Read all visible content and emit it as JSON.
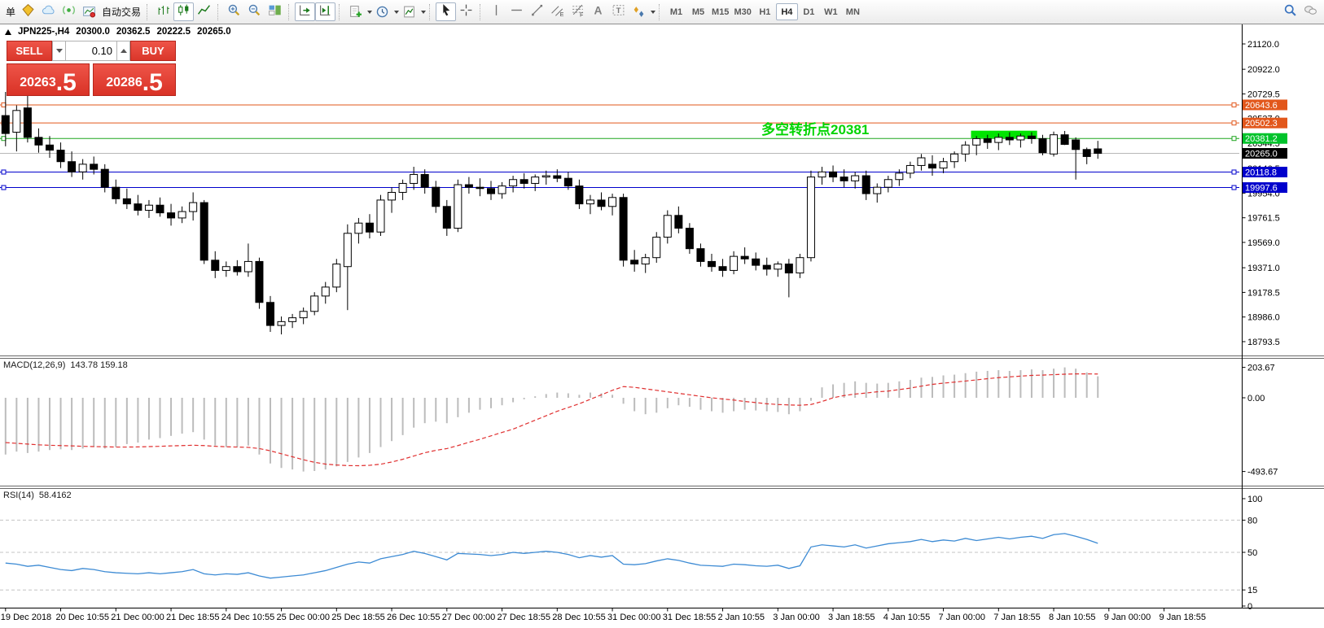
{
  "toolbar": {
    "new_order_label": "单",
    "autotrading_label": "自动交易",
    "icons": [
      "order-ticket",
      "market-watch-cloud",
      "signals",
      "autotrading",
      "bar-chart",
      "candlestick-chart",
      "line-chart",
      "zoom-in",
      "zoom-out",
      "tile-windows",
      "auto-scroll",
      "chart-shift",
      "indicators",
      "periods",
      "templates",
      "cursor",
      "crosshair",
      "vertical-line",
      "horizontal-line",
      "trendline",
      "equidistant-channel",
      "fibonacci",
      "text",
      "text-label",
      "arrows",
      "search",
      "chat"
    ],
    "timeframes": [
      "M1",
      "M5",
      "M15",
      "M30",
      "H1",
      "H4",
      "D1",
      "W1",
      "MN"
    ],
    "active_timeframe": "H4"
  },
  "chart": {
    "title": {
      "symbol_period": "JPN225-,H4",
      "open": "20300.0",
      "high": "20362.5",
      "low": "20222.5",
      "close": "20265.0"
    },
    "trade_panel": {
      "sell_label": "SELL",
      "buy_label": "BUY",
      "volume": "0.10",
      "sell_price_main": "20263",
      "sell_price_big": ".5",
      "buy_price_main": "20286",
      "buy_price_big": ".5",
      "panel_color": "#da362a"
    },
    "annotation": {
      "text": "多空转折点20381",
      "color": "#00d400",
      "x": 935,
      "anchor_price": 20381.2
    },
    "y_ticks": [
      21120.0,
      20922.0,
      20729.5,
      20537.0,
      20344.5,
      20146.5,
      19954.0,
      19761.5,
      19569.0,
      19371.0,
      19178.5,
      18986.0,
      18793.5
    ],
    "hlines": [
      {
        "price": 20643.6,
        "label": "20643.6",
        "color": "#e2571b",
        "label_bg": "#e2571b",
        "text_color": "#ffffff",
        "handles": true
      },
      {
        "price": 20502.3,
        "label": "20502.3",
        "color": "#e2571b",
        "label_bg": "#e2571b",
        "text_color": "#ffffff",
        "handles": true
      },
      {
        "price": 20381.2,
        "label": "20381.2",
        "color": "#1fa51f",
        "label_bg": "#00c32b",
        "text_color": "#ffffff",
        "handles": true
      },
      {
        "price": 20265.0,
        "label": "20265.0",
        "color": "#b8b8b8",
        "label_bg": "#000000",
        "text_color": "#ffffff",
        "handles": false
      },
      {
        "price": 20118.8,
        "label": "20118.8",
        "color": "#0000cc",
        "label_bg": "#0000cc",
        "text_color": "#ffffff",
        "handles": true
      },
      {
        "price": 19997.6,
        "label": "19997.6",
        "color": "#0000cc",
        "label_bg": "#0000cc",
        "text_color": "#ffffff",
        "handles": true
      }
    ],
    "highlight": {
      "start_index": 88,
      "end_index": 93,
      "price_top": 20442,
      "price_bottom": 20384,
      "color": "#00e400"
    },
    "x_labels": [
      "19 Dec 2018",
      "20 Dec 10:55",
      "21 Dec 00:00",
      "21 Dec 18:55",
      "24 Dec 10:55",
      "25 Dec 00:00",
      "25 Dec 18:55",
      "26 Dec 10:55",
      "27 Dec 00:00",
      "27 Dec 18:55",
      "28 Dec 10:55",
      "31 Dec 00:00",
      "31 Dec 18:55",
      "2 Jan 10:55",
      "3 Jan 00:00",
      "3 Jan 18:55",
      "4 Jan 10:55",
      "7 Jan 00:00",
      "7 Jan 18:55",
      "8 Jan 10:55",
      "9 Jan 00:00",
      "9 Jan 18:55"
    ],
    "candles": [
      [
        20560,
        20745,
        20320,
        20420
      ],
      [
        20430,
        20640,
        20280,
        20600
      ],
      [
        20620,
        20745,
        20350,
        20390
      ],
      [
        20390,
        20460,
        20270,
        20330
      ],
      [
        20330,
        20400,
        20230,
        20290
      ],
      [
        20290,
        20350,
        20150,
        20200
      ],
      [
        20200,
        20280,
        20080,
        20120
      ],
      [
        20120,
        20220,
        20060,
        20180
      ],
      [
        20180,
        20240,
        20100,
        20140
      ],
      [
        20140,
        20180,
        19960,
        20000
      ],
      [
        20000,
        20060,
        19870,
        19910
      ],
      [
        19910,
        19990,
        19830,
        19870
      ],
      [
        19870,
        19940,
        19780,
        19820
      ],
      [
        19820,
        19900,
        19760,
        19860
      ],
      [
        19860,
        19920,
        19770,
        19800
      ],
      [
        19800,
        19870,
        19700,
        19760
      ],
      [
        19760,
        19850,
        19720,
        19810
      ],
      [
        19810,
        19960,
        19740,
        19880
      ],
      [
        19880,
        19900,
        19400,
        19430
      ],
      [
        19430,
        19500,
        19290,
        19350
      ],
      [
        19350,
        19420,
        19300,
        19380
      ],
      [
        19380,
        19430,
        19310,
        19340
      ],
      [
        19340,
        19560,
        19300,
        19420
      ],
      [
        19420,
        19450,
        19050,
        19100
      ],
      [
        19100,
        19150,
        18870,
        18920
      ],
      [
        18920,
        18990,
        18850,
        18950
      ],
      [
        18950,
        19010,
        18900,
        18980
      ],
      [
        18980,
        19060,
        18930,
        19030
      ],
      [
        19030,
        19180,
        19000,
        19150
      ],
      [
        19150,
        19260,
        19090,
        19220
      ],
      [
        19220,
        19440,
        19180,
        19400
      ],
      [
        19380,
        19710,
        19040,
        19640
      ],
      [
        19640,
        19760,
        19560,
        19720
      ],
      [
        19720,
        19790,
        19600,
        19650
      ],
      [
        19650,
        19940,
        19620,
        19900
      ],
      [
        19900,
        20000,
        19800,
        19960
      ],
      [
        19960,
        20060,
        19900,
        20030
      ],
      [
        20030,
        20160,
        19980,
        20100
      ],
      [
        20100,
        20140,
        19950,
        20000
      ],
      [
        20000,
        20050,
        19800,
        19850
      ],
      [
        19850,
        19900,
        19620,
        19680
      ],
      [
        19680,
        20060,
        19650,
        20020
      ],
      [
        20020,
        20080,
        19950,
        20000
      ],
      [
        20000,
        20070,
        19930,
        19990
      ],
      [
        19990,
        20050,
        19900,
        19950
      ],
      [
        19950,
        20040,
        19910,
        20010
      ],
      [
        20010,
        20090,
        19960,
        20060
      ],
      [
        20060,
        20110,
        19990,
        20030
      ],
      [
        20030,
        20100,
        19970,
        20080
      ],
      [
        20080,
        20130,
        20020,
        20090
      ],
      [
        20090,
        20140,
        20040,
        20070
      ],
      [
        20070,
        20120,
        19980,
        20010
      ],
      [
        20010,
        20060,
        19830,
        19870
      ],
      [
        19870,
        19940,
        19790,
        19900
      ],
      [
        19900,
        19960,
        19820,
        19850
      ],
      [
        19850,
        19950,
        19780,
        19920
      ],
      [
        19920,
        19950,
        19380,
        19430
      ],
      [
        19430,
        19510,
        19340,
        19400
      ],
      [
        19400,
        19480,
        19330,
        19450
      ],
      [
        19450,
        19650,
        19410,
        19610
      ],
      [
        19610,
        19820,
        19560,
        19780
      ],
      [
        19780,
        19850,
        19640,
        19680
      ],
      [
        19680,
        19720,
        19480,
        19520
      ],
      [
        19520,
        19560,
        19380,
        19420
      ],
      [
        19420,
        19480,
        19340,
        19380
      ],
      [
        19380,
        19440,
        19300,
        19350
      ],
      [
        19350,
        19500,
        19320,
        19460
      ],
      [
        19460,
        19530,
        19400,
        19440
      ],
      [
        19440,
        19490,
        19350,
        19390
      ],
      [
        19390,
        19450,
        19310,
        19360
      ],
      [
        19360,
        19420,
        19300,
        19400
      ],
      [
        19400,
        19440,
        19140,
        19330
      ],
      [
        19330,
        19480,
        19290,
        19450
      ],
      [
        19450,
        20130,
        19420,
        20080
      ],
      [
        20080,
        20160,
        20020,
        20120
      ],
      [
        20120,
        20170,
        20040,
        20080
      ],
      [
        20080,
        20140,
        20000,
        20050
      ],
      [
        20050,
        20120,
        19990,
        20090
      ],
      [
        20090,
        20130,
        19900,
        19950
      ],
      [
        19950,
        20030,
        19880,
        20000
      ],
      [
        20000,
        20090,
        19960,
        20060
      ],
      [
        20060,
        20140,
        20010,
        20110
      ],
      [
        20110,
        20200,
        20070,
        20170
      ],
      [
        20170,
        20260,
        20130,
        20230
      ],
      [
        20180,
        20250,
        20090,
        20150
      ],
      [
        20150,
        20230,
        20110,
        20200
      ],
      [
        20200,
        20280,
        20150,
        20260
      ],
      [
        20260,
        20360,
        20200,
        20330
      ],
      [
        20330,
        20400,
        20250,
        20380
      ],
      [
        20380,
        20410,
        20300,
        20350
      ],
      [
        20350,
        20420,
        20290,
        20390
      ],
      [
        20390,
        20430,
        20330,
        20370
      ],
      [
        20370,
        20420,
        20310,
        20400
      ],
      [
        20400,
        20430,
        20340,
        20380
      ],
      [
        20380,
        20410,
        20250,
        20270
      ],
      [
        20260,
        20435,
        20240,
        20410
      ],
      [
        20410,
        20440,
        20330,
        20335
      ],
      [
        20370,
        20390,
        20060,
        20295
      ],
      [
        20295,
        20310,
        20180,
        20240
      ],
      [
        20300,
        20362.5,
        20222.5,
        20265
      ]
    ]
  },
  "macd": {
    "label": "MACD(12,26,9)",
    "values": "143.78 159.18",
    "scale": [
      "203.67",
      "0.00",
      "-493.67"
    ],
    "scale_max": 203.67,
    "scale_min": -493.67,
    "histogram_color": "#bcbcbc",
    "signal_color": "#e03030",
    "histogram": [
      -380,
      -360,
      -370,
      -360,
      -350,
      -345,
      -350,
      -340,
      -330,
      -340,
      -330,
      -310,
      -300,
      -280,
      -270,
      -255,
      -240,
      -230,
      -280,
      -320,
      -330,
      -330,
      -320,
      -380,
      -440,
      -470,
      -480,
      -493.67,
      -490,
      -480,
      -460,
      -430,
      -400,
      -370,
      -330,
      -290,
      -250,
      -200,
      -170,
      -160,
      -170,
      -130,
      -100,
      -80,
      -70,
      -50,
      -30,
      -10,
      10,
      25,
      35,
      30,
      20,
      35,
      30,
      20,
      -40,
      -90,
      -110,
      -100,
      -70,
      -50,
      -60,
      -80,
      -90,
      -100,
      -90,
      -80,
      -85,
      -90,
      -95,
      -110,
      -90,
      -20,
      70,
      90,
      100,
      110,
      100,
      95,
      100,
      110,
      120,
      135,
      140,
      150,
      155,
      165,
      175,
      180,
      185,
      180,
      185,
      190,
      185,
      195,
      203.67,
      195,
      170,
      143.78
    ],
    "signal": [
      -300,
      -305,
      -310,
      -315,
      -318,
      -320,
      -322,
      -325,
      -327,
      -328,
      -330,
      -330,
      -329,
      -327,
      -325,
      -322,
      -320,
      -318,
      -320,
      -325,
      -328,
      -330,
      -332,
      -340,
      -355,
      -375,
      -395,
      -415,
      -432,
      -444,
      -450,
      -454,
      -455,
      -452,
      -445,
      -430,
      -412,
      -390,
      -368,
      -352,
      -340,
      -320,
      -298,
      -278,
      -255,
      -232,
      -210,
      -180,
      -150,
      -120,
      -90,
      -65,
      -40,
      -10,
      20,
      50,
      75,
      70,
      60,
      50,
      40,
      30,
      20,
      10,
      0,
      -8,
      -15,
      -25,
      -32,
      -40,
      -45,
      -48,
      -50,
      -45,
      -25,
      0,
      15,
      25,
      32,
      40,
      45,
      55,
      65,
      78,
      90,
      98,
      105,
      112,
      120,
      128,
      135,
      140,
      145,
      150,
      152,
      155,
      158,
      160,
      160,
      159.18
    ]
  },
  "rsi": {
    "label": "RSI(14)",
    "value": "58.4162",
    "scale": [
      "100",
      "80",
      "50",
      "15",
      "0"
    ],
    "levels": [
      80,
      50,
      15
    ],
    "line_color": "#3d8bd4",
    "line": [
      40,
      39,
      37,
      38,
      36,
      34,
      33,
      35,
      34,
      32,
      31,
      30.5,
      30,
      31,
      30,
      31,
      32,
      34,
      30,
      29,
      30,
      29.5,
      31,
      28,
      26,
      27,
      28,
      29,
      31,
      33,
      36,
      39,
      41,
      40,
      44,
      46,
      48,
      51,
      49,
      46,
      43,
      49,
      48.5,
      48,
      47,
      48,
      50,
      49,
      50,
      51,
      50,
      48,
      45,
      47,
      45.5,
      47,
      39,
      38.5,
      39.5,
      42,
      44,
      42.5,
      40,
      38,
      37.5,
      37,
      39,
      38.5,
      37.5,
      37,
      38,
      35,
      37.5,
      55,
      57,
      56,
      55,
      57,
      54,
      56,
      58,
      59,
      60,
      62,
      60,
      61.5,
      60.5,
      63,
      61,
      62.5,
      64,
      62.5,
      64,
      65,
      63,
      66.5,
      67.5,
      65,
      62,
      58.4162
    ]
  }
}
